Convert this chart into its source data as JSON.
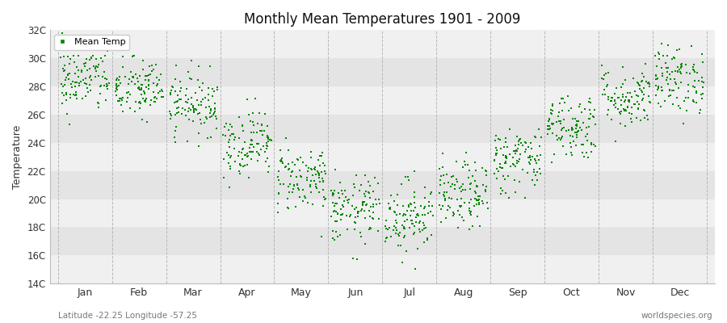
{
  "title": "Monthly Mean Temperatures 1901 - 2009",
  "ylabel": "Temperature",
  "subtitle_left": "Latitude -22.25 Longitude -57.25",
  "subtitle_right": "worldspecies.org",
  "legend_label": "Mean Temp",
  "marker_color": "#008800",
  "ylim": [
    14,
    32
  ],
  "yticks": [
    14,
    16,
    18,
    20,
    22,
    24,
    26,
    28,
    30,
    32
  ],
  "ytick_labels": [
    "14C",
    "16C",
    "18C",
    "20C",
    "22C",
    "24C",
    "26C",
    "28C",
    "30C",
    "32C"
  ],
  "months": [
    "Jan",
    "Feb",
    "Mar",
    "Apr",
    "May",
    "Jun",
    "Jul",
    "Aug",
    "Sep",
    "Oct",
    "Nov",
    "Dec"
  ],
  "n_years": 109,
  "mean_temps": [
    28.5,
    27.8,
    26.8,
    24.0,
    21.5,
    19.2,
    18.8,
    20.2,
    22.8,
    25.2,
    27.2,
    28.5
  ],
  "temp_std": [
    1.2,
    1.1,
    1.1,
    1.2,
    1.2,
    1.2,
    1.3,
    1.2,
    1.2,
    1.2,
    1.1,
    1.2
  ],
  "band_colors": [
    "#f0f0f0",
    "#e4e4e4"
  ],
  "grid_color": "#aaaaaa",
  "marker_size": 4
}
